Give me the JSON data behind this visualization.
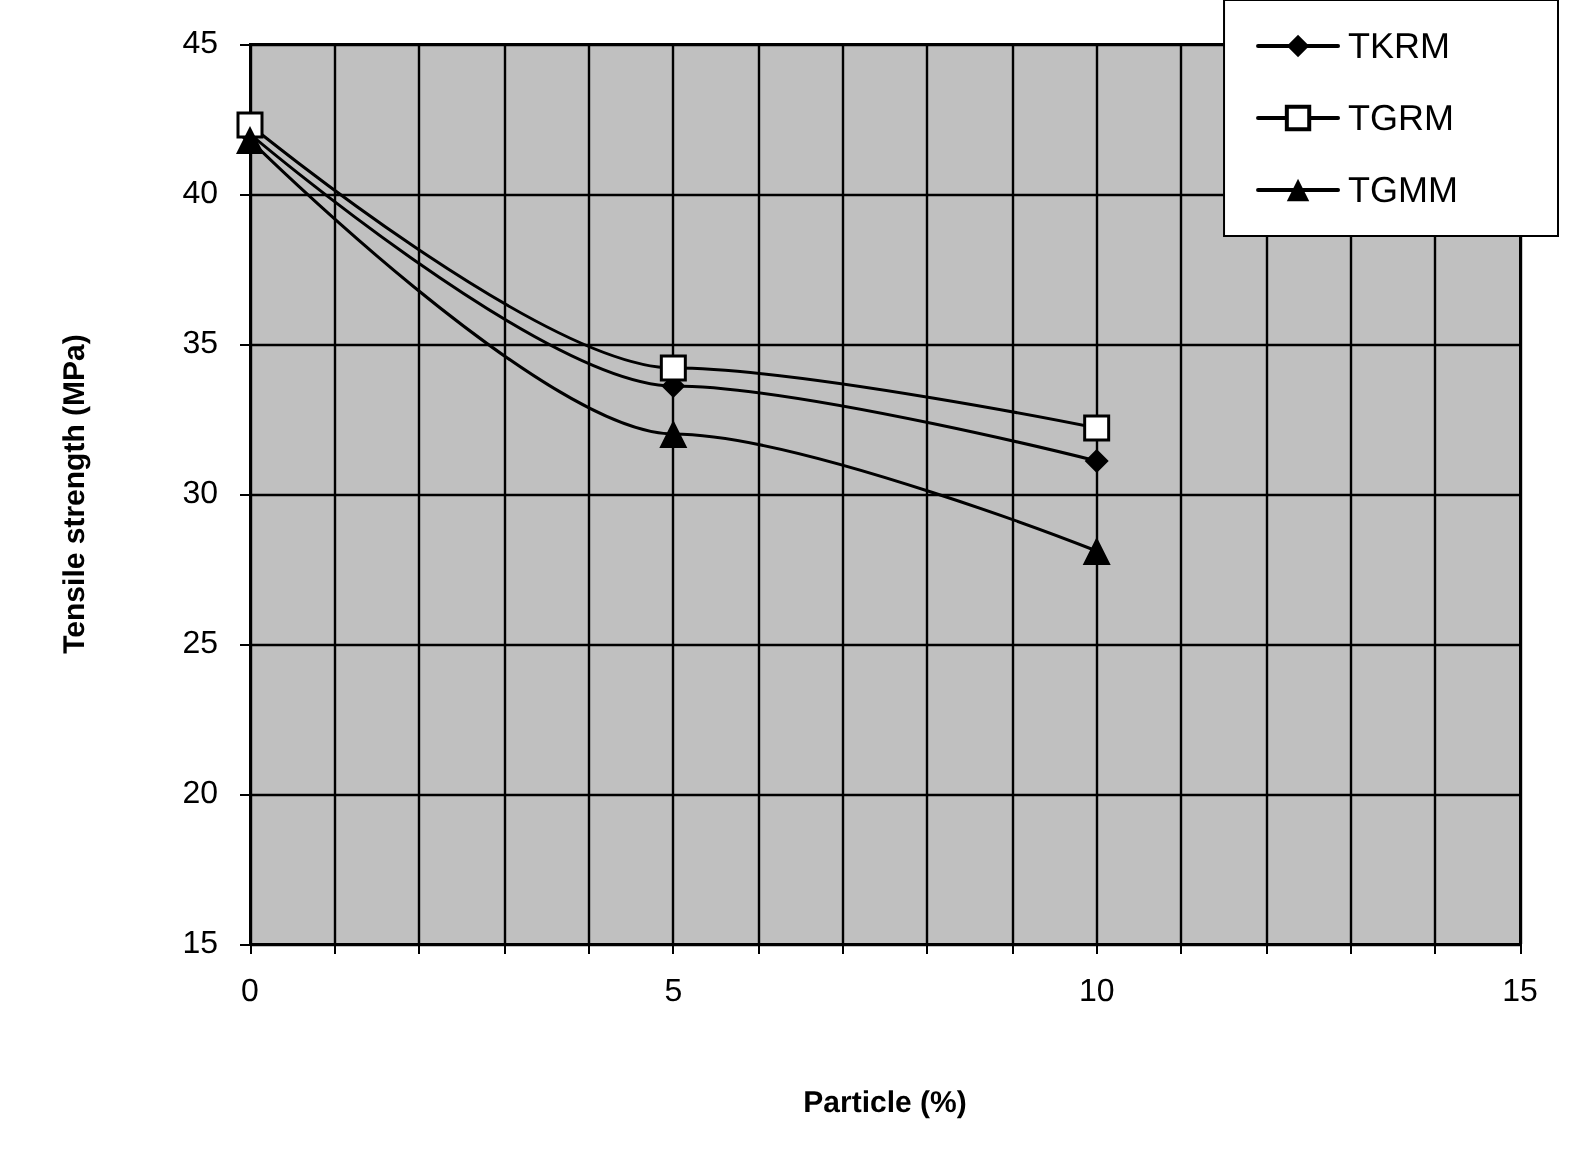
{
  "chart_data": {
    "type": "line",
    "xlabel": "Particle (%)",
    "ylabel": "Tensile strength (MPa)",
    "x": [
      0,
      5,
      10
    ],
    "series": [
      {
        "name": "TKRM",
        "color": "#000000",
        "marker": "diamond",
        "values": [
          42.0,
          33.6,
          31.1
        ]
      },
      {
        "name": "TGRM",
        "color": "#000000",
        "marker": "square",
        "values": [
          42.3,
          34.2,
          32.2
        ]
      },
      {
        "name": "TGMM",
        "color": "#000000",
        "marker": "triangle",
        "values": [
          41.8,
          32.0,
          28.1
        ]
      }
    ],
    "xlim": [
      0,
      15
    ],
    "xticks": [
      0,
      {
        "value": 1,
        "label": null
      },
      {
        "value": 2,
        "label": null
      },
      {
        "value": 3,
        "label": null
      },
      {
        "value": 4,
        "label": null
      },
      5,
      {
        "value": 6,
        "label": null
      },
      {
        "value": 7,
        "label": null
      },
      {
        "value": 8,
        "label": null
      },
      {
        "value": 9,
        "label": null
      },
      10,
      {
        "value": 11,
        "label": null
      },
      {
        "value": 12,
        "label": null
      },
      {
        "value": 13,
        "label": null
      },
      {
        "value": 14,
        "label": null
      },
      15
    ],
    "ylim": [
      15,
      45
    ],
    "yticks": [
      15,
      20,
      25,
      30,
      35,
      40,
      45
    ],
    "grid": true,
    "legend": "top right",
    "line_style": "solid"
  }
}
